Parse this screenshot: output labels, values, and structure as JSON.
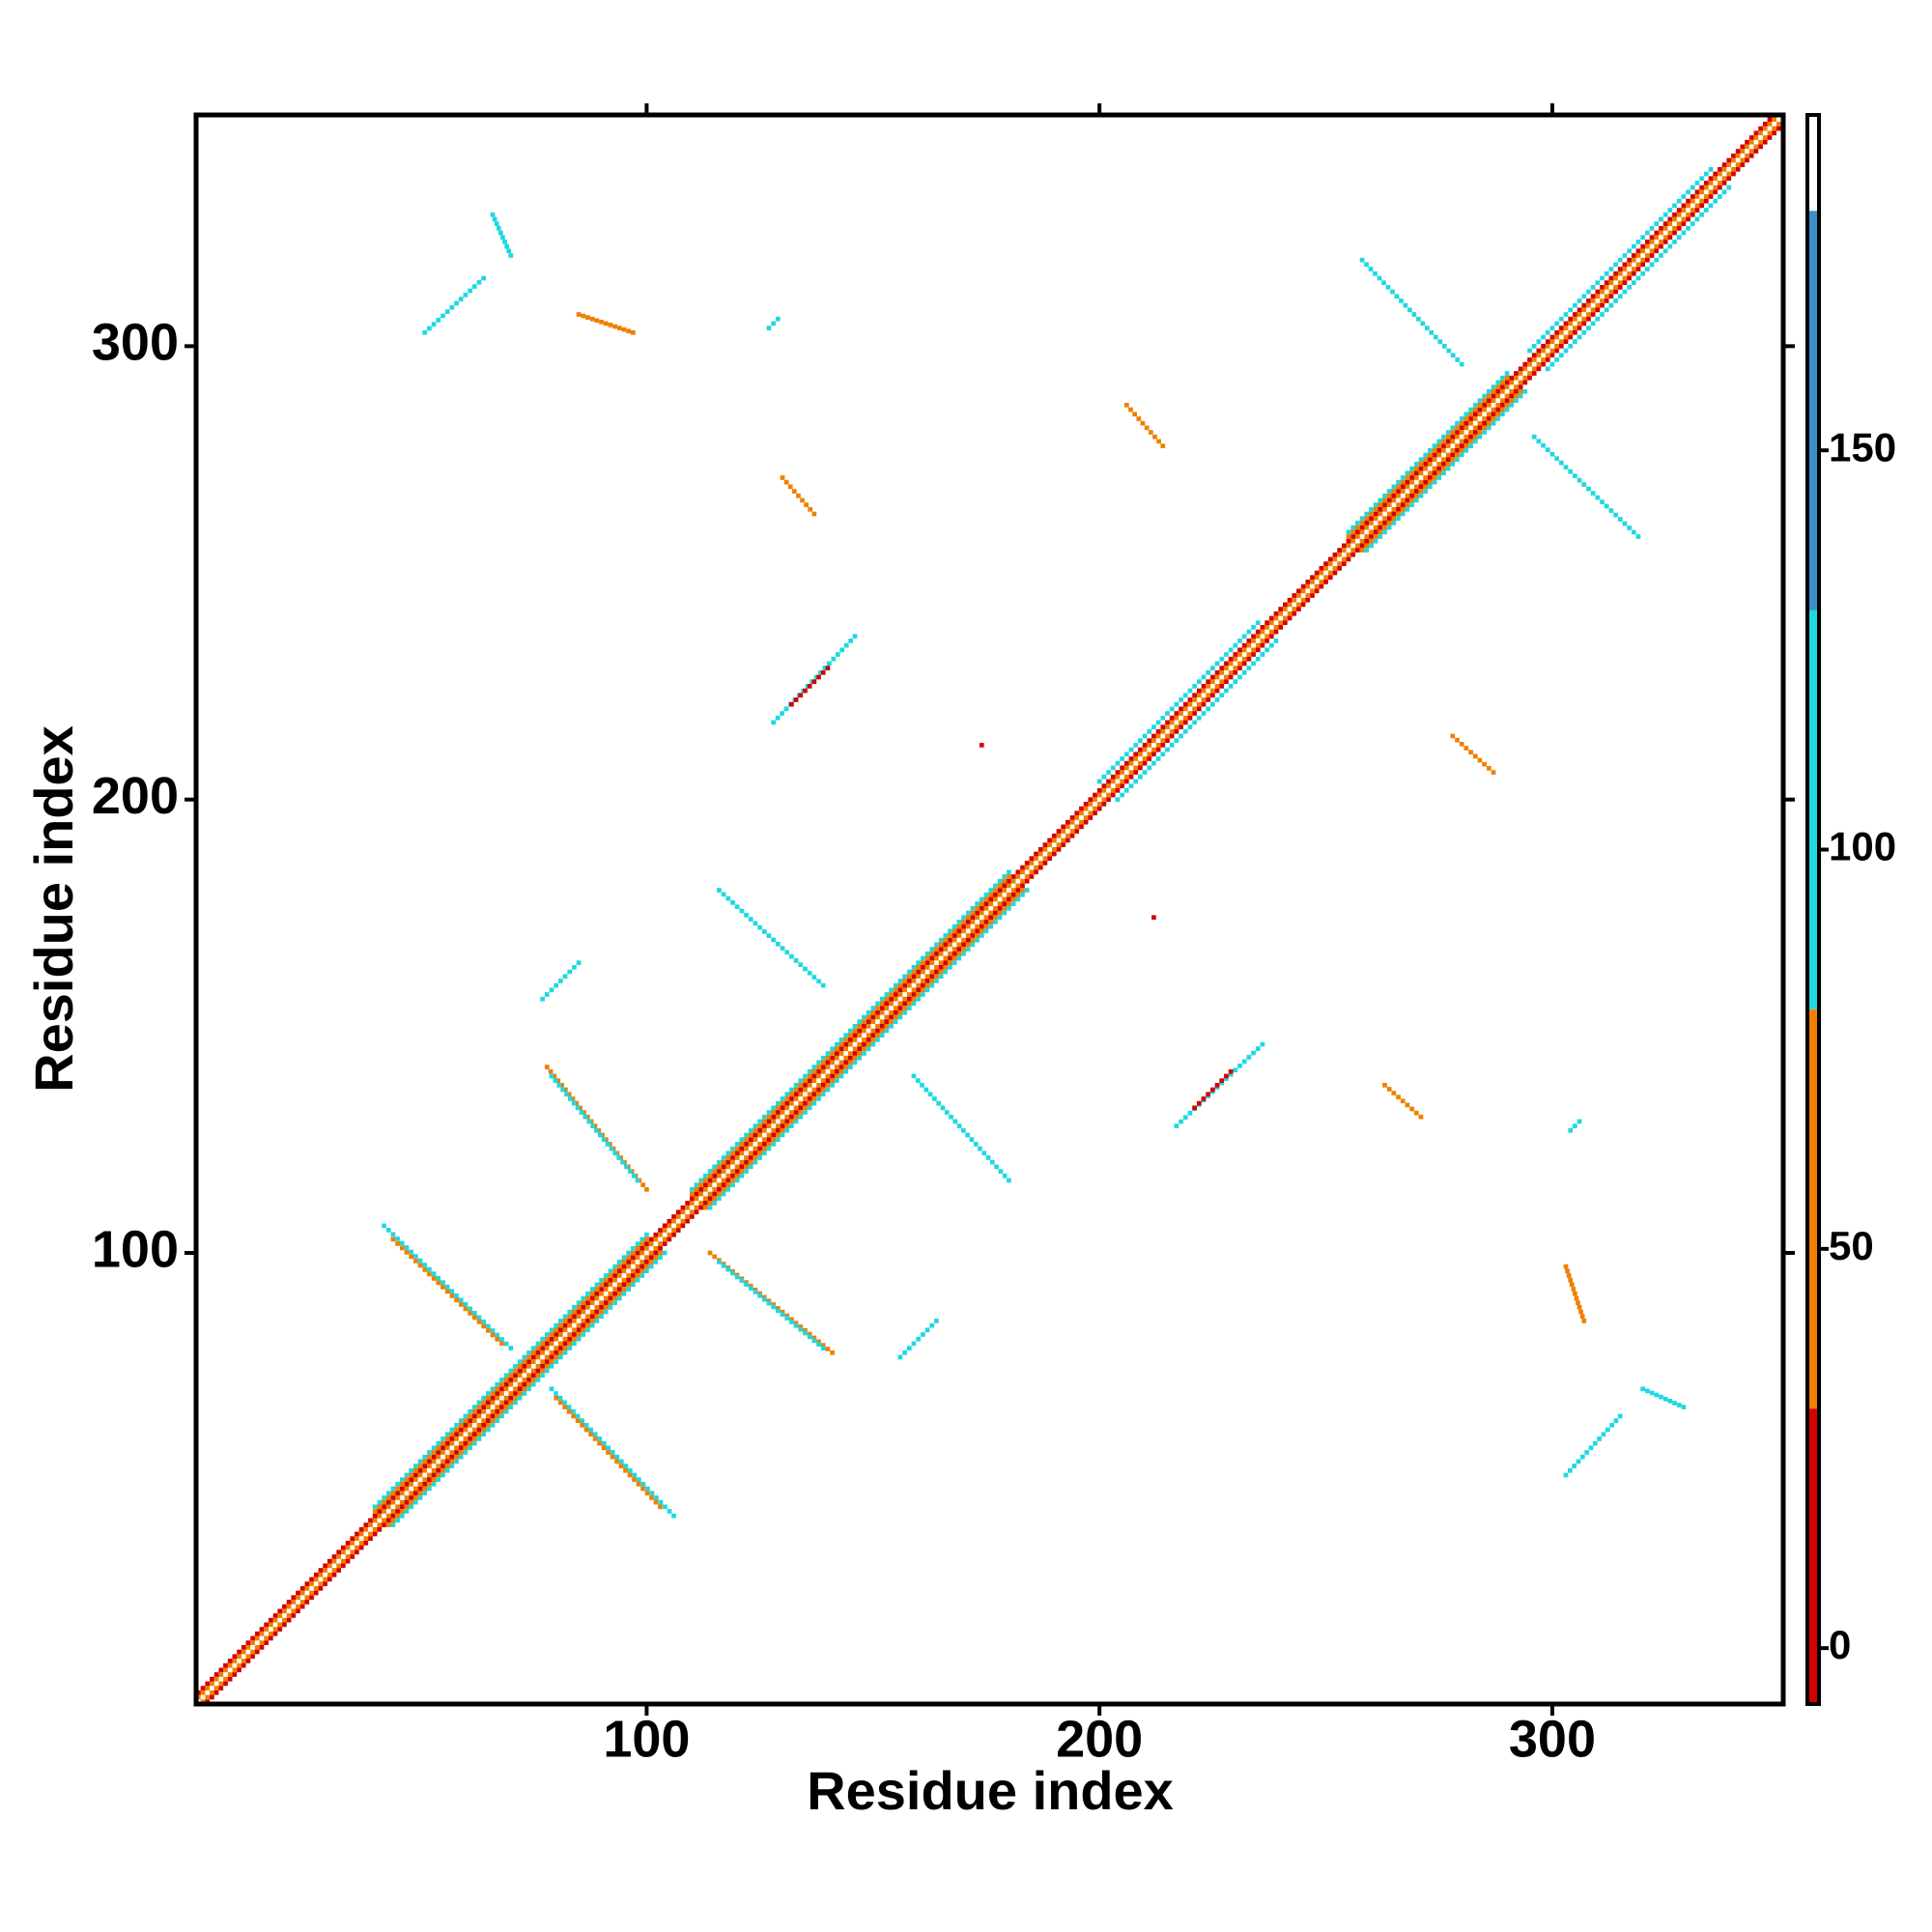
{
  "chart_data": {
    "type": "heatmap",
    "xlabel": "Residue index",
    "ylabel": "Residue index",
    "xlim": [
      0.5,
      351
    ],
    "ylim": [
      0.5,
      351
    ],
    "xticks": [
      100,
      200,
      300
    ],
    "yticks": [
      100,
      200,
      300
    ],
    "symmetric": true,
    "segments": [
      {
        "x": [
          1,
          350
        ],
        "y": [
          2,
          351
        ],
        "value": 60
      },
      {
        "x": [
          1,
          349
        ],
        "y": [
          3,
          351
        ],
        "value": 20
      },
      {
        "x": [
          40,
          100
        ],
        "y": [
          44,
          104
        ],
        "value": 110
      },
      {
        "x": [
          40,
          100
        ],
        "y": [
          43,
          103
        ],
        "value": 50
      },
      {
        "x": [
          110,
          180
        ],
        "y": [
          114,
          184
        ],
        "value": 110
      },
      {
        "x": [
          110,
          180
        ],
        "y": [
          113,
          183
        ],
        "value": 40
      },
      {
        "x": [
          200,
          235
        ],
        "y": [
          204,
          239
        ],
        "value": 110
      },
      {
        "x": [
          255,
          290
        ],
        "y": [
          259,
          294
        ],
        "value": 110
      },
      {
        "x": [
          255,
          290
        ],
        "y": [
          258,
          293
        ],
        "value": 40
      },
      {
        "x": [
          295,
          335
        ],
        "y": [
          299,
          339
        ],
        "value": 110
      },
      {
        "x": [
          51,
          64
        ],
        "y": [
          303,
          315
        ],
        "value": 90
      },
      {
        "x": [
          66,
          70
        ],
        "y": [
          329,
          320
        ],
        "value": 110
      },
      {
        "x": [
          85,
          97
        ],
        "y": [
          307,
          303
        ],
        "value": 60
      },
      {
        "x": [
          127,
          129
        ],
        "y": [
          304,
          306
        ],
        "value": 110
      },
      {
        "x": [
          130,
          137
        ],
        "y": [
          271,
          263
        ],
        "value": 50
      },
      {
        "x": [
          128,
          146
        ],
        "y": [
          217,
          236
        ],
        "value": 100
      },
      {
        "x": [
          132,
          140
        ],
        "y": [
          221,
          229
        ],
        "value": 10
      },
      {
        "x": [
          116,
          139
        ],
        "y": [
          180,
          159
        ],
        "value": 110
      },
      {
        "x": [
          77,
          85
        ],
        "y": [
          156,
          164
        ],
        "value": 110
      },
      {
        "x": [
          78,
          100
        ],
        "y": [
          141,
          114
        ],
        "value": 60
      },
      {
        "x": [
          79,
          98
        ],
        "y": [
          139,
          116
        ],
        "value": 110
      },
      {
        "x": [
          42,
          70
        ],
        "y": [
          106,
          79
        ],
        "value": 110
      },
      {
        "x": [
          44,
          68
        ],
        "y": [
          103,
          80
        ],
        "value": 60
      },
      {
        "x": [
          206,
          214
        ],
        "y": [
          287,
          278
        ],
        "value": 50
      },
      {
        "x": [
          258,
          280
        ],
        "y": [
          319,
          296
        ],
        "value": 110
      },
      {
        "x": [
          174,
          174
        ],
        "y": [
          212,
          212
        ],
        "value": 10
      }
    ],
    "colorbar": {
      "ylim": [
        -7,
        192
      ],
      "yticks": [
        0,
        50,
        100,
        150
      ],
      "bands": [
        {
          "from": -7,
          "to": 30,
          "color": "#d40000"
        },
        {
          "from": 30,
          "to": 80,
          "color": "#f07f00"
        },
        {
          "from": 80,
          "to": 130,
          "color": "#1fd8e0"
        },
        {
          "from": 130,
          "to": 180,
          "color": "#3a8fc8"
        },
        {
          "from": 180,
          "to": 192,
          "color": "#ffffff"
        }
      ]
    }
  }
}
